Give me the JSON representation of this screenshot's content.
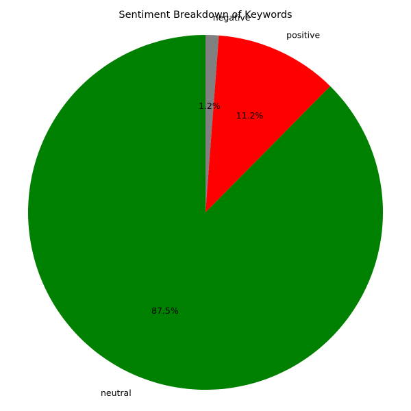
{
  "chart_data": {
    "type": "pie",
    "title": "Sentiment Breakdown of Keywords",
    "start_angle_deg": 90,
    "direction": "clockwise",
    "slices": [
      {
        "label": "negative",
        "value": 1.2,
        "pct_label": "1.2%",
        "color": "#808080"
      },
      {
        "label": "positive",
        "value": 11.2,
        "pct_label": "11.2%",
        "color": "#ff0000"
      },
      {
        "label": "neutral",
        "value": 87.5,
        "pct_label": "87.5%",
        "color": "#008000"
      }
    ]
  }
}
